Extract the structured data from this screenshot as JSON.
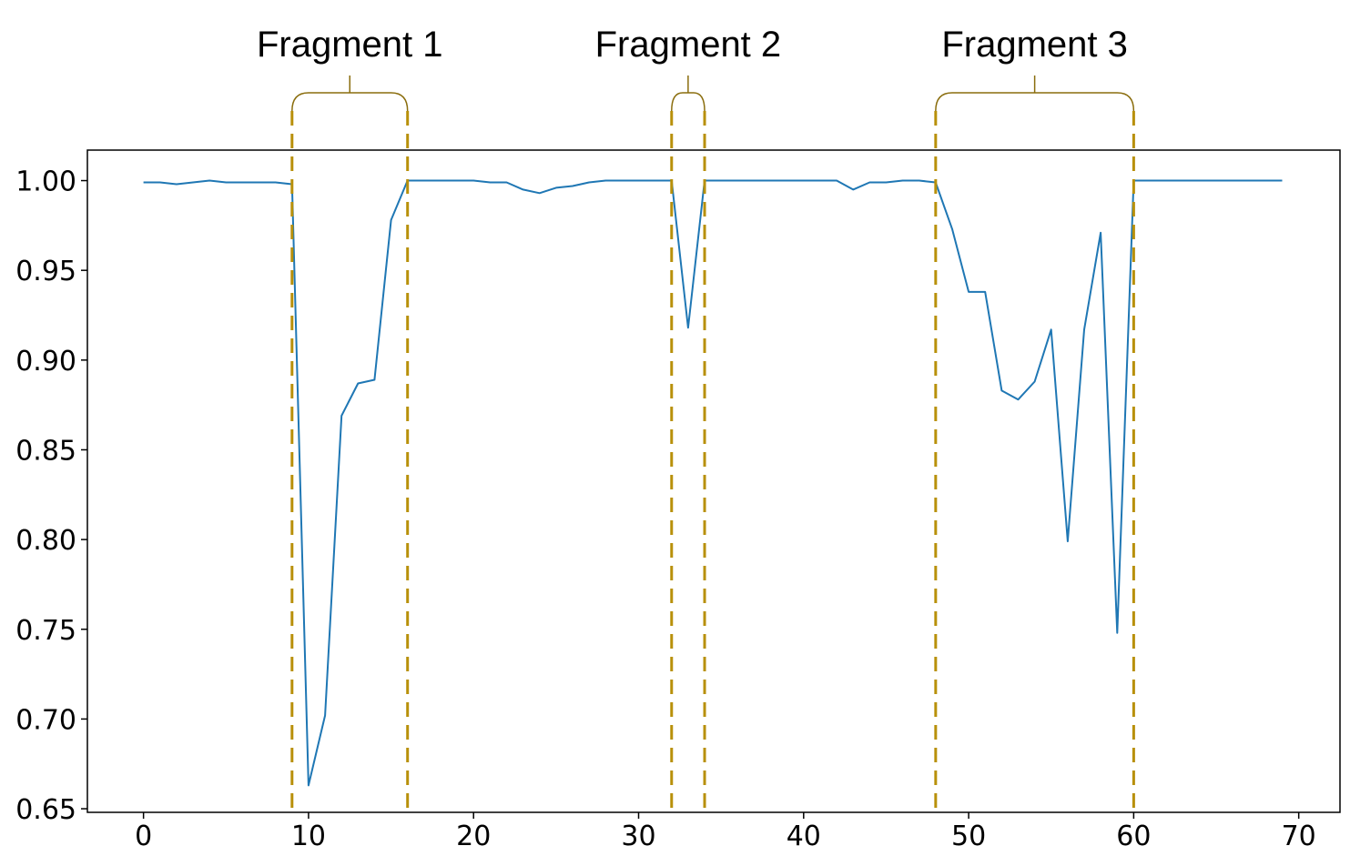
{
  "chart_data": {
    "type": "line",
    "title": "",
    "xlabel": "",
    "ylabel": "",
    "xlim": [
      -3.4,
      72.5
    ],
    "ylim": [
      0.648,
      1.017
    ],
    "x_ticks": [
      0,
      10,
      20,
      30,
      40,
      50,
      60,
      70
    ],
    "y_ticks": [
      1.0,
      0.95,
      0.9,
      0.85,
      0.8,
      0.75,
      0.7,
      0.65
    ],
    "x_tick_labels": [
      "0",
      "10",
      "20",
      "30",
      "40",
      "50",
      "60",
      "70"
    ],
    "y_tick_labels": [
      "1.00",
      "0.95",
      "0.90",
      "0.85",
      "0.80",
      "0.75",
      "0.70",
      "0.65"
    ],
    "grid": false,
    "series": [
      {
        "color": "#1f77b4",
        "x": [
          0,
          1,
          2,
          3,
          4,
          5,
          6,
          7,
          8,
          9,
          10,
          11,
          12,
          13,
          14,
          15,
          16,
          17,
          18,
          19,
          20,
          21,
          22,
          23,
          24,
          25,
          26,
          27,
          28,
          29,
          30,
          31,
          32,
          33,
          34,
          35,
          36,
          37,
          38,
          39,
          40,
          41,
          42,
          43,
          44,
          45,
          46,
          47,
          48,
          49,
          50,
          51,
          52,
          53,
          54,
          55,
          56,
          57,
          58,
          59,
          60,
          61,
          62,
          63,
          64,
          65,
          66,
          67,
          68,
          69
        ],
        "y": [
          0.999,
          0.999,
          0.998,
          0.999,
          1.0,
          0.999,
          0.999,
          0.999,
          0.999,
          0.998,
          0.663,
          0.702,
          0.869,
          0.887,
          0.889,
          0.978,
          1.0,
          1.0,
          1.0,
          1.0,
          1.0,
          0.999,
          0.999,
          0.995,
          0.993,
          0.996,
          0.997,
          0.999,
          1.0,
          1.0,
          1.0,
          1.0,
          1.0,
          0.918,
          1.0,
          1.0,
          1.0,
          1.0,
          1.0,
          1.0,
          1.0,
          1.0,
          1.0,
          0.995,
          0.999,
          0.999,
          1.0,
          1.0,
          0.999,
          0.973,
          0.938,
          0.938,
          0.883,
          0.878,
          0.888,
          0.917,
          0.799,
          0.917,
          0.971,
          0.748,
          1.0,
          1.0,
          1.0,
          1.0,
          1.0,
          1.0,
          1.0,
          1.0,
          1.0,
          1.0
        ]
      }
    ],
    "annotations": [
      {
        "label": "Fragment 1",
        "start": 9,
        "end": 16
      },
      {
        "label": "Fragment 2",
        "start": 32,
        "end": 34
      },
      {
        "label": "Fragment 3",
        "start": 48,
        "end": 60
      }
    ],
    "colors": {
      "line": "#1f77b4",
      "fragment_marker": "#b8900a",
      "bracket": "#8a6d0d"
    }
  }
}
